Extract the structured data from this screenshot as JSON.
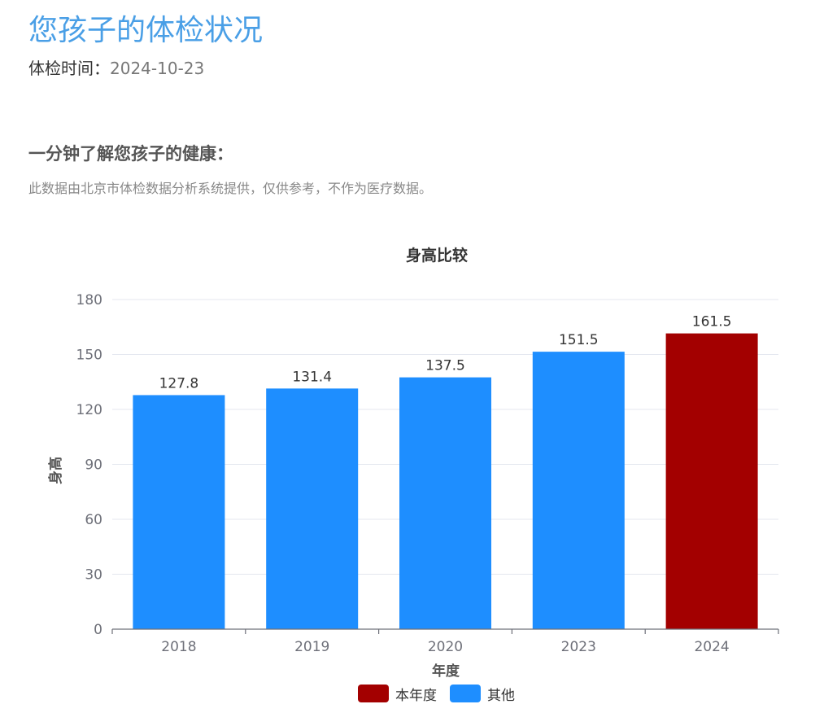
{
  "header": {
    "title": "您孩子的体检状况",
    "date_label": "体检时间：",
    "date_value": "2024-10-23"
  },
  "section": {
    "heading": "一分钟了解您孩子的健康：",
    "note": "此数据由北京市体检数据分析系统提供，仅供参考，不作为医疗数据。"
  },
  "colors": {
    "current_year": "#a30000",
    "other_years": "#1e8eff",
    "title": "#4a9fe6"
  },
  "chart_data": {
    "type": "bar",
    "title": "身高比较",
    "xlabel": "年度",
    "ylabel": "身高",
    "categories": [
      "2018",
      "2019",
      "2020",
      "2023",
      "2024"
    ],
    "values": [
      127.8,
      131.4,
      137.5,
      151.5,
      161.5
    ],
    "highlight_index": 4,
    "ylim": [
      0,
      180
    ],
    "yticks": [
      0,
      30,
      60,
      90,
      120,
      150,
      180
    ],
    "grid": true,
    "legend": [
      {
        "name": "本年度",
        "color": "#a30000"
      },
      {
        "name": "其他",
        "color": "#1e8eff"
      }
    ],
    "legend_position": "bottom"
  }
}
